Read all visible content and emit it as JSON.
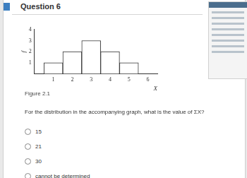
{
  "header": {
    "title": "Question 6"
  },
  "chart_data": {
    "type": "histogram",
    "bins": [
      0.5,
      1.5,
      2.5,
      3.5,
      4.5,
      5.5
    ],
    "counts": [
      1,
      2,
      3,
      2,
      1
    ],
    "color": "#ffffff",
    "xlim": [
      0,
      6.5
    ],
    "xticks": [
      1,
      2,
      3,
      4,
      5,
      6
    ],
    "ylim": [
      0,
      4
    ],
    "yticks": [
      1,
      2,
      3,
      4
    ],
    "x_label": "X",
    "y_label": "f",
    "grid": false
  },
  "caption": "Figure 2.1",
  "question": "For the distribution in the accompanying graph, what is the value of ΣX?",
  "options": [
    "15",
    "21",
    "30",
    "cannot be determined"
  ]
}
